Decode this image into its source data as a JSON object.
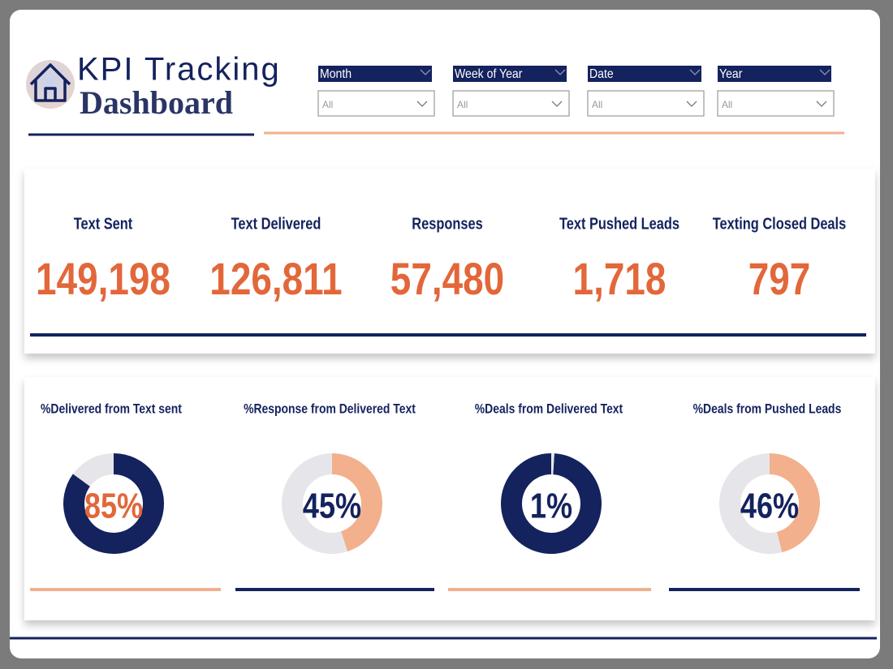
{
  "header": {
    "title": "KPI Tracking",
    "subtitle": "Dashboard"
  },
  "filters": [
    {
      "label": "Month",
      "value": "All"
    },
    {
      "label": "Week of Year",
      "value": "All"
    },
    {
      "label": "Date",
      "value": "All"
    },
    {
      "label": "Year",
      "value": "All"
    }
  ],
  "kpis": [
    {
      "label": "Text Sent",
      "value": "149,198"
    },
    {
      "label": "Text Delivered",
      "value": "126,811"
    },
    {
      "label": "Responses",
      "value": "57,480"
    },
    {
      "label": "Text Pushed Leads",
      "value": "1,718"
    },
    {
      "label": "Texting Closed Deals",
      "value": "797"
    }
  ],
  "donuts": [
    {
      "title": "%Delivered from Text sent",
      "value": 85,
      "value_label": "85%",
      "color": "#14225e",
      "rest_color": "#e6e6ea",
      "label_color": "#e2673a",
      "underline": "#f0b08e"
    },
    {
      "title": "%Response from Delivered Text",
      "value": 45,
      "value_label": "45%",
      "color": "#f2b08c",
      "rest_color": "#e6e6ea",
      "label_color": "#14225e",
      "underline": "#14225e"
    },
    {
      "title": "%Deals from Delivered Text",
      "value": 1,
      "value_label": "1%",
      "color": "#e6e6ea",
      "rest_color": "#14225e",
      "label_color": "#14225e",
      "underline": "#f0b08e"
    },
    {
      "title": "%Deals from Pushed Leads",
      "value": 46,
      "value_label": "46%",
      "color": "#f2b08c",
      "rest_color": "#e6e6ea",
      "label_color": "#14225e",
      "underline": "#14225e"
    }
  ]
}
